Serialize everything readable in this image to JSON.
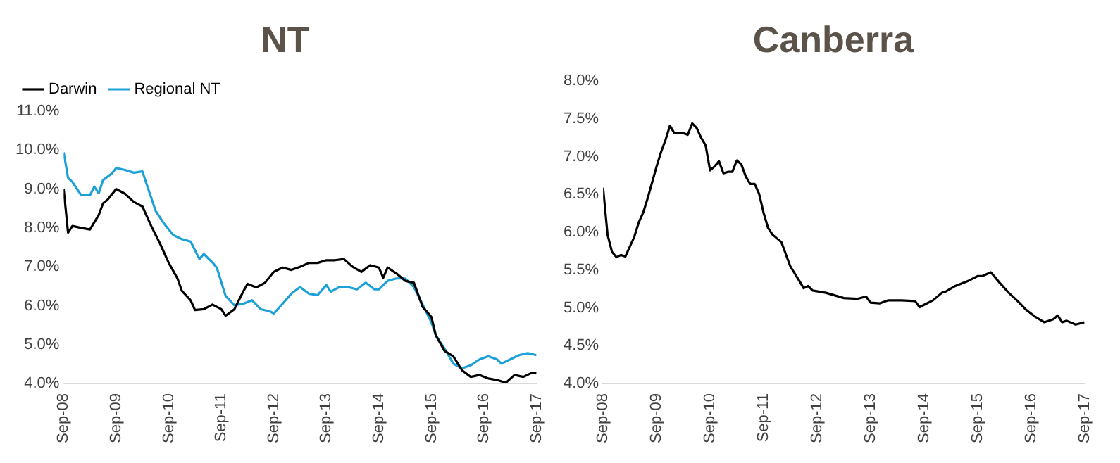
{
  "chart_data": [
    {
      "type": "line",
      "title": "NT",
      "legend": "top left",
      "grid": false,
      "marker": "none",
      "line_style": "solid",
      "xlim": [
        "2008-09",
        "2017-09"
      ],
      "xticks": [
        {
          "value": "2008-09",
          "label": "Sep-08"
        },
        {
          "value": "2009-09",
          "label": "Sep-09"
        },
        {
          "value": "2010-09",
          "label": "Sep-10"
        },
        {
          "value": "2011-09",
          "label": "Sep-11"
        },
        {
          "value": "2012-09",
          "label": "Sep-12"
        },
        {
          "value": "2013-09",
          "label": "Sep-13"
        },
        {
          "value": "2014-09",
          "label": "Sep-14"
        },
        {
          "value": "2015-09",
          "label": "Sep-15"
        },
        {
          "value": "2016-09",
          "label": "Sep-16"
        },
        {
          "value": "2017-09",
          "label": "Sep-17"
        }
      ],
      "ylim": [
        4,
        11
      ],
      "yticks": [
        {
          "value": 4,
          "label": "4.0%"
        },
        {
          "value": 5,
          "label": "5.0%"
        },
        {
          "value": 6,
          "label": "6.0%"
        },
        {
          "value": 7,
          "label": "7.0%"
        },
        {
          "value": 8,
          "label": "8.0%"
        },
        {
          "value": 9,
          "label": "9.0%"
        },
        {
          "value": 10,
          "label": "10.0%"
        },
        {
          "value": 11,
          "label": "11.0%"
        }
      ],
      "series": [
        {
          "name": "Darwin",
          "color": "#000000",
          "x": [
            "2008-09",
            "2008-10",
            "2008-11",
            "2009-01",
            "2009-03",
            "2009-05",
            "2009-06",
            "2009-07",
            "2009-09",
            "2009-11",
            "2010-01",
            "2010-03",
            "2010-05",
            "2010-07",
            "2010-09",
            "2010-11",
            "2010-12",
            "2011-02",
            "2011-03",
            "2011-05",
            "2011-07",
            "2011-09",
            "2011-10",
            "2011-12",
            "2012-02",
            "2012-03",
            "2012-05",
            "2012-07",
            "2012-09",
            "2012-11",
            "2013-01",
            "2013-03",
            "2013-05",
            "2013-07",
            "2013-09",
            "2013-11",
            "2014-01",
            "2014-03",
            "2014-05",
            "2014-07",
            "2014-09",
            "2014-10",
            "2014-11",
            "2015-01",
            "2015-03",
            "2015-05",
            "2015-07",
            "2015-09",
            "2015-10",
            "2015-12",
            "2016-02",
            "2016-04",
            "2016-06",
            "2016-08",
            "2016-10",
            "2016-12",
            "2017-02",
            "2017-04",
            "2017-06",
            "2017-08",
            "2017-09"
          ],
          "values": [
            9.0,
            7.88,
            8.05,
            8.0,
            7.96,
            8.33,
            8.63,
            8.72,
            9.0,
            8.88,
            8.67,
            8.55,
            8.05,
            7.6,
            7.1,
            6.7,
            6.38,
            6.14,
            5.89,
            5.91,
            6.03,
            5.91,
            5.74,
            5.91,
            6.36,
            6.56,
            6.47,
            6.59,
            6.87,
            6.98,
            6.92,
            7.0,
            7.1,
            7.1,
            7.17,
            7.17,
            7.2,
            7.0,
            6.87,
            7.04,
            6.98,
            6.72,
            6.98,
            6.83,
            6.64,
            6.59,
            5.97,
            5.71,
            5.24,
            4.84,
            4.7,
            4.34,
            4.17,
            4.22,
            4.13,
            4.09,
            4.02,
            4.22,
            4.17,
            4.28,
            4.26
          ]
        },
        {
          "name": "Regional NT",
          "color": "#1ba1d8",
          "x": [
            "2008-09",
            "2008-10",
            "2008-11",
            "2009-01",
            "2009-03",
            "2009-04",
            "2009-05",
            "2009-06",
            "2009-08",
            "2009-09",
            "2009-11",
            "2010-01",
            "2010-03",
            "2010-04",
            "2010-06",
            "2010-08",
            "2010-10",
            "2010-12",
            "2011-02",
            "2011-04",
            "2011-05",
            "2011-07",
            "2011-08",
            "2011-10",
            "2011-12",
            "2012-02",
            "2012-04",
            "2012-06",
            "2012-08",
            "2012-09",
            "2012-11",
            "2013-01",
            "2013-03",
            "2013-05",
            "2013-07",
            "2013-09",
            "2013-10",
            "2013-12",
            "2014-02",
            "2014-04",
            "2014-06",
            "2014-08",
            "2014-09",
            "2014-11",
            "2015-01",
            "2015-03",
            "2015-05",
            "2015-07",
            "2015-09",
            "2015-10",
            "2015-12",
            "2016-02",
            "2016-04",
            "2016-06",
            "2016-08",
            "2016-10",
            "2016-12",
            "2017-01",
            "2017-03",
            "2017-05",
            "2017-07",
            "2017-09"
          ],
          "values": [
            9.94,
            9.29,
            9.18,
            8.84,
            8.84,
            9.06,
            8.89,
            9.23,
            9.4,
            9.54,
            9.49,
            9.42,
            9.45,
            9.11,
            8.44,
            8.1,
            7.82,
            7.71,
            7.65,
            7.2,
            7.33,
            7.11,
            6.97,
            6.25,
            6.01,
            6.05,
            6.14,
            5.91,
            5.86,
            5.8,
            6.05,
            6.31,
            6.48,
            6.31,
            6.27,
            6.53,
            6.36,
            6.48,
            6.48,
            6.42,
            6.59,
            6.42,
            6.42,
            6.64,
            6.7,
            6.7,
            6.48,
            6.03,
            5.57,
            5.24,
            4.9,
            4.51,
            4.39,
            4.47,
            4.62,
            4.7,
            4.62,
            4.51,
            4.62,
            4.73,
            4.78,
            4.73
          ]
        }
      ]
    },
    {
      "type": "line",
      "title": "Canberra",
      "grid": false,
      "marker": "none",
      "line_style": "solid",
      "xlim": [
        "2008-09",
        "2017-09"
      ],
      "xticks": [
        {
          "value": "2008-09",
          "label": "Sep-08"
        },
        {
          "value": "2009-09",
          "label": "Sep-09"
        },
        {
          "value": "2010-09",
          "label": "Sep-10"
        },
        {
          "value": "2011-09",
          "label": "Sep-11"
        },
        {
          "value": "2012-09",
          "label": "Sep-12"
        },
        {
          "value": "2013-09",
          "label": "Sep-13"
        },
        {
          "value": "2014-09",
          "label": "Sep-14"
        },
        {
          "value": "2015-09",
          "label": "Sep-15"
        },
        {
          "value": "2016-09",
          "label": "Sep-16"
        },
        {
          "value": "2017-09",
          "label": "Sep-17"
        }
      ],
      "ylim": [
        4,
        8
      ],
      "yticks": [
        {
          "value": 4,
          "label": "4.0%"
        },
        {
          "value": 4.5,
          "label": "4.5%"
        },
        {
          "value": 5,
          "label": "5.0%"
        },
        {
          "value": 5.5,
          "label": "5.5%"
        },
        {
          "value": 6,
          "label": "6.0%"
        },
        {
          "value": 6.5,
          "label": "6.5%"
        },
        {
          "value": 7,
          "label": "7.0%"
        },
        {
          "value": 7.5,
          "label": "7.5%"
        },
        {
          "value": 8,
          "label": "8.0%"
        }
      ],
      "series": [
        {
          "color": "#000000",
          "x": [
            "2008-09",
            "2008-10",
            "2008-11",
            "2008-12",
            "2009-01",
            "2009-02",
            "2009-03",
            "2009-04",
            "2009-05",
            "2009-06",
            "2009-07",
            "2009-09",
            "2009-10",
            "2009-11",
            "2009-12",
            "2010-01",
            "2010-03",
            "2010-04",
            "2010-05",
            "2010-06",
            "2010-07",
            "2010-08",
            "2010-09",
            "2010-10",
            "2010-11",
            "2010-12",
            "2011-01",
            "2011-02",
            "2011-03",
            "2011-04",
            "2011-05",
            "2011-06",
            "2011-07",
            "2011-08",
            "2011-09",
            "2011-10",
            "2011-11",
            "2012-01",
            "2012-02",
            "2012-03",
            "2012-05",
            "2012-06",
            "2012-07",
            "2012-08",
            "2012-11",
            "2013-03",
            "2013-06",
            "2013-08",
            "2013-09",
            "2013-11",
            "2014-01",
            "2014-04",
            "2014-07",
            "2014-08",
            "2014-09",
            "2014-11",
            "2015-01",
            "2015-02",
            "2015-04",
            "2015-07",
            "2015-09",
            "2015-10",
            "2015-12",
            "2016-02",
            "2016-04",
            "2016-06",
            "2016-08",
            "2016-10",
            "2016-12",
            "2017-02",
            "2017-03",
            "2017-04",
            "2017-05",
            "2017-07",
            "2017-09"
          ],
          "values": [
            6.59,
            5.97,
            5.74,
            5.67,
            5.7,
            5.68,
            5.81,
            5.94,
            6.13,
            6.26,
            6.45,
            6.87,
            7.06,
            7.22,
            7.41,
            7.31,
            7.31,
            7.29,
            7.44,
            7.38,
            7.25,
            7.15,
            6.82,
            6.87,
            6.94,
            6.78,
            6.8,
            6.8,
            6.95,
            6.9,
            6.74,
            6.64,
            6.64,
            6.51,
            6.26,
            6.06,
            5.97,
            5.87,
            5.71,
            5.55,
            5.36,
            5.26,
            5.29,
            5.23,
            5.2,
            5.13,
            5.12,
            5.15,
            5.07,
            5.06,
            5.1,
            5.1,
            5.09,
            5.01,
            5.04,
            5.1,
            5.2,
            5.22,
            5.29,
            5.36,
            5.42,
            5.42,
            5.47,
            5.33,
            5.2,
            5.09,
            4.97,
            4.88,
            4.81,
            4.85,
            4.9,
            4.81,
            4.83,
            4.78,
            4.81
          ]
        }
      ]
    }
  ]
}
